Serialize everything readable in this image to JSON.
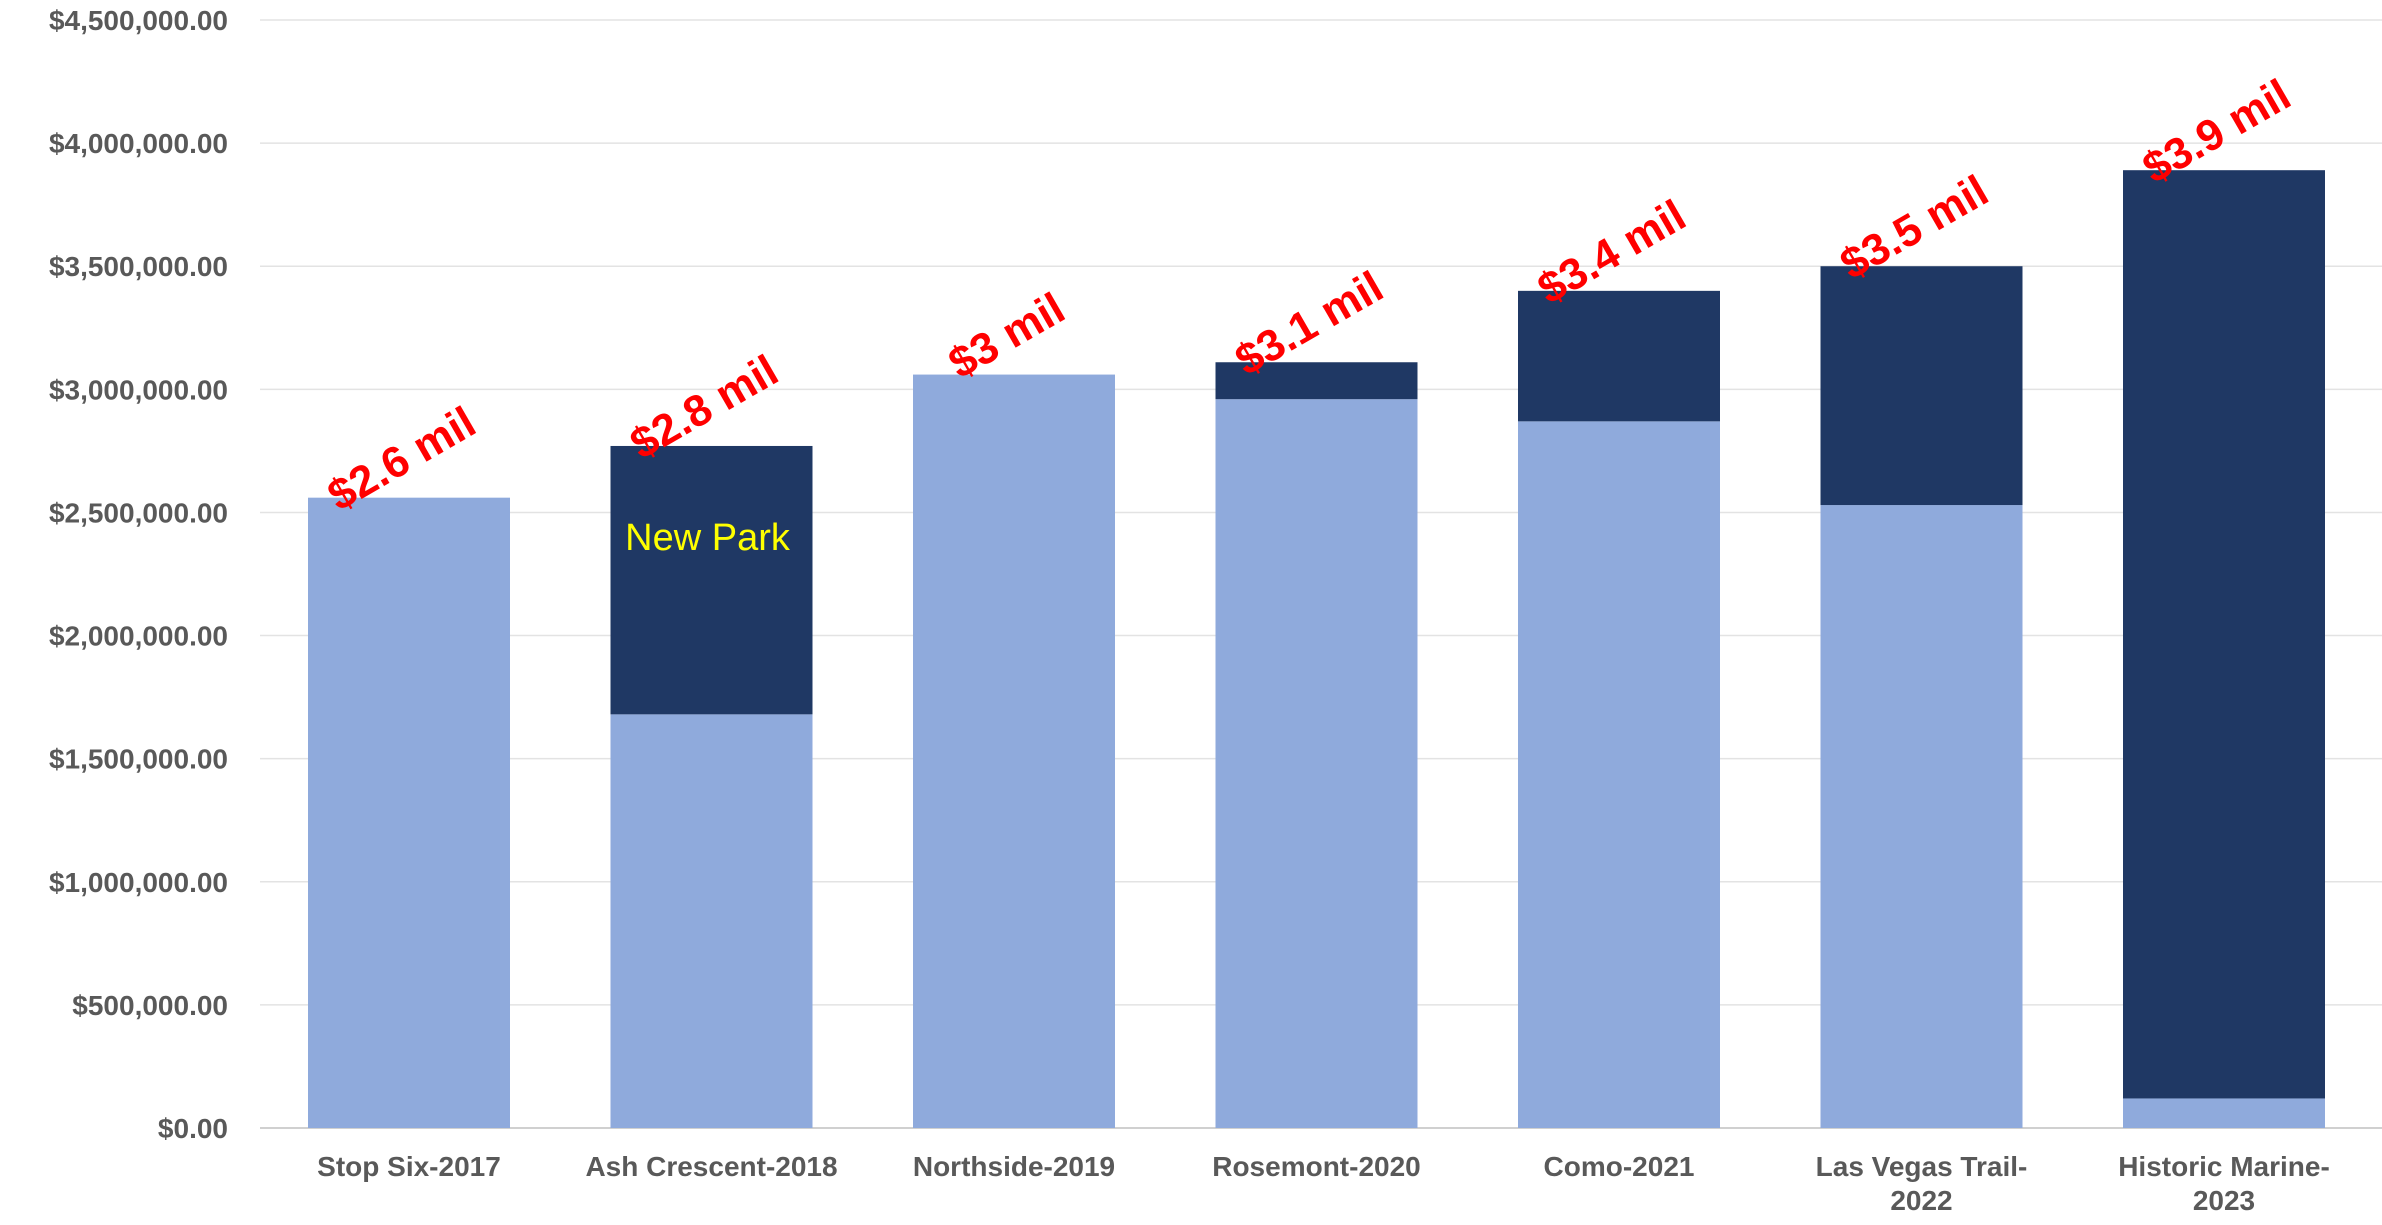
{
  "chart_data": {
    "type": "bar",
    "stacked": true,
    "categories": [
      [
        "Stop Six-2017"
      ],
      [
        "Ash Crescent-2018"
      ],
      [
        "Northside-2019"
      ],
      [
        "Rosemont-2020"
      ],
      [
        "Como-2021"
      ],
      [
        "Las Vegas Trail-",
        "2022"
      ],
      [
        "Historic Marine-",
        "2023"
      ]
    ],
    "series": [
      {
        "color": "#8faadc",
        "values": [
          2560000,
          1680000,
          3060000,
          2960000,
          2870000,
          2530000,
          120000
        ]
      },
      {
        "color": "#1f3864",
        "values": [
          0,
          1090000,
          0,
          150000,
          530000,
          970000,
          3770000
        ]
      }
    ],
    "total_labels": [
      "$2.6 mil",
      "$2.8 mil",
      "$3 mil",
      "$3.1 mil",
      "$3.4 mil",
      "$3.5 mil",
      "$3.9 mil"
    ],
    "annotations": [
      {
        "text": "New Park",
        "category_index": 1
      }
    ],
    "y_ticks": [
      {
        "value": 0,
        "label": "$0.00"
      },
      {
        "value": 500000,
        "label": "$500,000.00"
      },
      {
        "value": 1000000,
        "label": "$1,000,000.00"
      },
      {
        "value": 1500000,
        "label": "$1,500,000.00"
      },
      {
        "value": 2000000,
        "label": "$2,000,000.00"
      },
      {
        "value": 2500000,
        "label": "$2,500,000.00"
      },
      {
        "value": 3000000,
        "label": "$3,000,000.00"
      },
      {
        "value": 3500000,
        "label": "$3,500,000.00"
      },
      {
        "value": 4000000,
        "label": "$4,000,000.00"
      },
      {
        "value": 4500000,
        "label": "$4,500,000.00"
      }
    ],
    "ylim": [
      0,
      4500000
    ],
    "grid": true,
    "legend": "none",
    "title": "",
    "xlabel": "",
    "ylabel": ""
  }
}
